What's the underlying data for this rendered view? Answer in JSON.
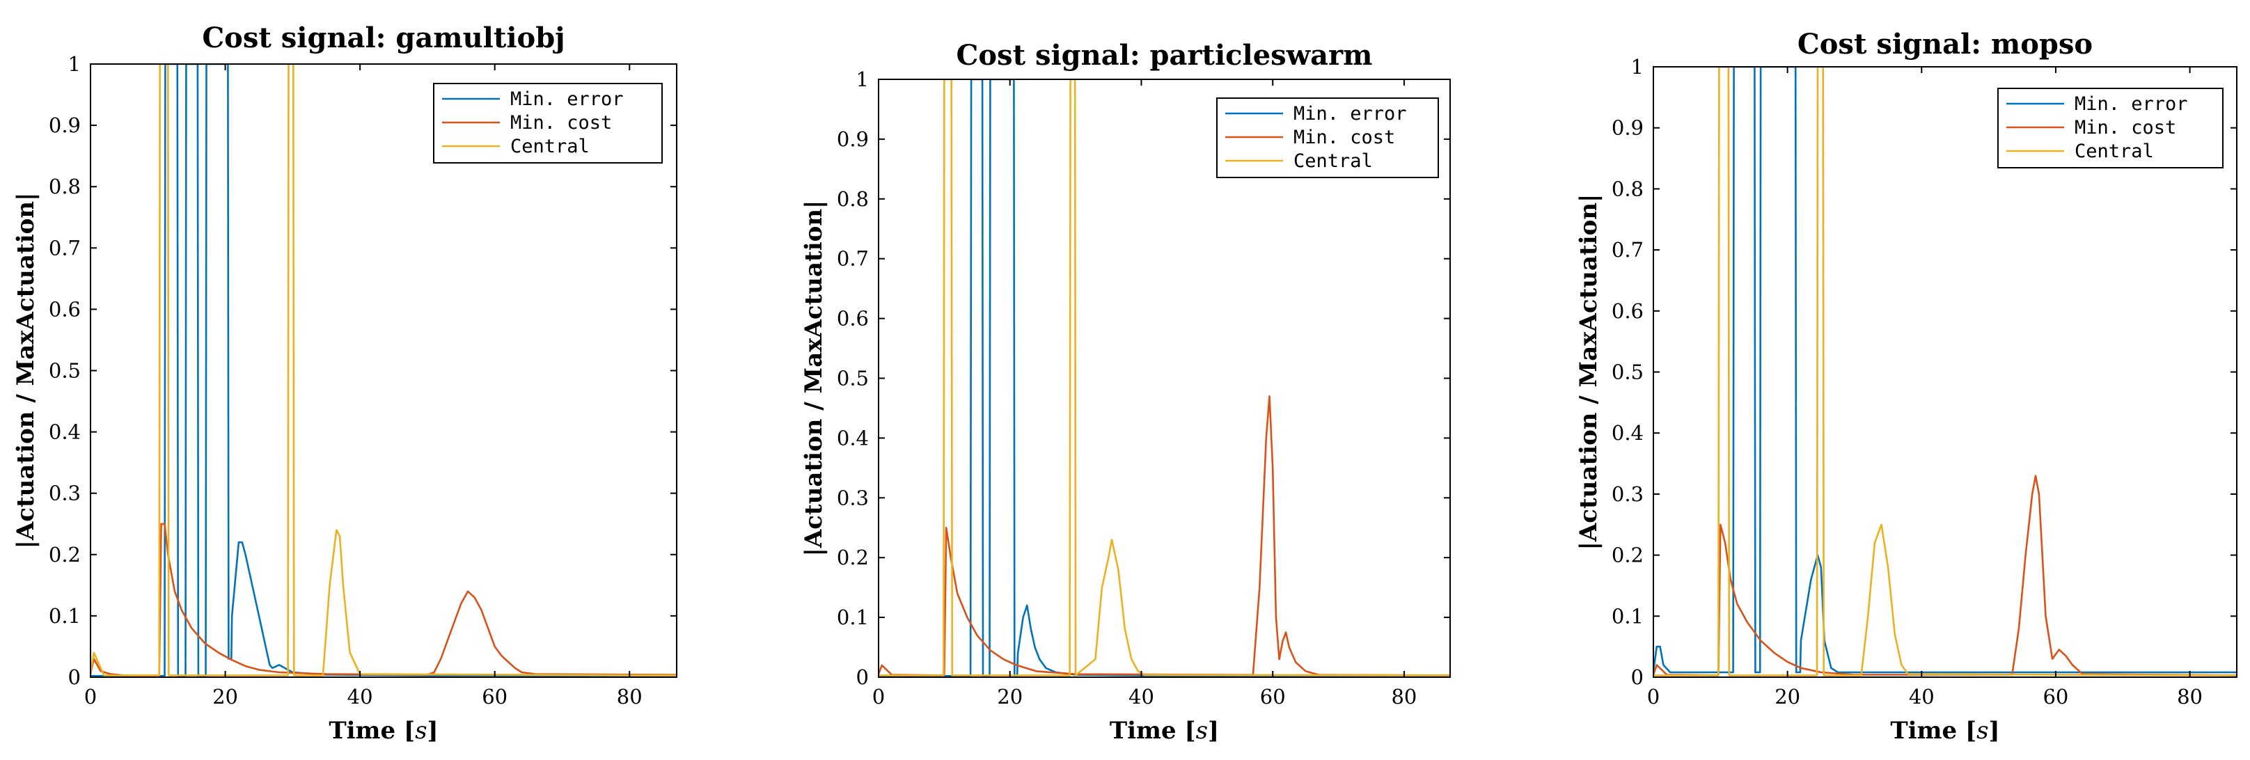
{
  "chart_data": [
    {
      "type": "line",
      "title": "Cost signal: gamultiobj",
      "xlabel": "Time",
      "xunit": "s",
      "ylabel": "|Actuation / MaxActuation|",
      "xlim": [
        0,
        87
      ],
      "ylim": [
        0,
        1
      ],
      "xticks": [
        0,
        20,
        40,
        60,
        80
      ],
      "yticks": [
        0,
        0.1,
        0.2,
        0.3,
        0.4,
        0.5,
        0.6,
        0.7,
        0.8,
        0.9,
        1
      ],
      "legend_position": "top-right",
      "series": [
        {
          "name": "Min. error",
          "color": "#0072BD",
          "x": [
            0,
            10.5,
            11.0,
            11.1,
            12.9,
            13.0,
            14.1,
            14.2,
            15.9,
            16.0,
            17.1,
            17.2,
            20.4,
            20.5,
            20.9,
            21.0,
            22.0,
            22.5,
            23.0,
            24.0,
            25.0,
            26.0,
            26.6,
            27.0,
            28.0,
            30.0,
            35.0,
            50.0,
            87.0
          ],
          "y": [
            0.002,
            0.002,
            0.002,
            1.0,
            1.0,
            0.002,
            0.002,
            1.0,
            1.0,
            0.002,
            0.002,
            1.0,
            1.0,
            0.03,
            0.03,
            0.1,
            0.22,
            0.22,
            0.2,
            0.15,
            0.1,
            0.05,
            0.02,
            0.015,
            0.02,
            0.008,
            0.004,
            0.003,
            0.003
          ]
        },
        {
          "name": "Min. cost",
          "color": "#D95319",
          "x": [
            0,
            0.5,
            1.5,
            3,
            5,
            8,
            10.2,
            10.5,
            11.0,
            11.5,
            12.5,
            13.5,
            15,
            17,
            19,
            21,
            23,
            25,
            28,
            35,
            50,
            51.0,
            52.0,
            53.0,
            54.0,
            55.0,
            56.0,
            57.0,
            58.0,
            59.0,
            60.0,
            61.0,
            62.0,
            63.0,
            64.0,
            66.0,
            87.0
          ],
          "y": [
            0.005,
            0.03,
            0.01,
            0.005,
            0.003,
            0.002,
            0.002,
            0.25,
            0.25,
            0.2,
            0.14,
            0.11,
            0.08,
            0.055,
            0.04,
            0.028,
            0.018,
            0.012,
            0.008,
            0.005,
            0.004,
            0.008,
            0.03,
            0.06,
            0.09,
            0.12,
            0.14,
            0.13,
            0.11,
            0.08,
            0.05,
            0.035,
            0.025,
            0.015,
            0.008,
            0.005,
            0.004
          ]
        },
        {
          "name": "Central",
          "color": "#EDB120",
          "x": [
            0,
            0.5,
            2,
            10.2,
            10.3,
            11.5,
            11.6,
            29.3,
            29.4,
            30.1,
            30.2,
            34.5,
            35.5,
            36.5,
            37.0,
            37.5,
            38.5,
            40.0,
            87.0
          ],
          "y": [
            0.005,
            0.04,
            0.003,
            0.003,
            1.0,
            1.0,
            0.003,
            0.003,
            1.0,
            1.0,
            0.003,
            0.003,
            0.15,
            0.24,
            0.23,
            0.15,
            0.04,
            0.005,
            0.003
          ]
        }
      ]
    },
    {
      "type": "line",
      "title": "Cost signal: particleswarm",
      "xlabel": "Time",
      "xunit": "s",
      "ylabel": "|Actuation / MaxActuation|",
      "xlim": [
        0,
        87
      ],
      "ylim": [
        0,
        1
      ],
      "xticks": [
        0,
        20,
        40,
        60,
        80
      ],
      "yticks": [
        0,
        0.1,
        0.2,
        0.3,
        0.4,
        0.5,
        0.6,
        0.7,
        0.8,
        0.9,
        1
      ],
      "legend_position": "top-right",
      "series": [
        {
          "name": "Min. error",
          "color": "#0072BD",
          "x": [
            0,
            10.5,
            14.0,
            14.1,
            15.8,
            15.9,
            16.9,
            17.0,
            20.6,
            20.7,
            21.1,
            21.2,
            22.0,
            22.6,
            23.2,
            23.8,
            24.5,
            25.5,
            27.0,
            30.0,
            40.0,
            87.0
          ],
          "y": [
            0.002,
            0.002,
            0.002,
            1.0,
            1.0,
            0.002,
            0.002,
            1.0,
            1.0,
            0.002,
            0.002,
            0.04,
            0.1,
            0.12,
            0.08,
            0.05,
            0.03,
            0.015,
            0.008,
            0.004,
            0.003,
            0.003
          ]
        },
        {
          "name": "Min. cost",
          "color": "#D95319",
          "x": [
            0,
            0.5,
            2,
            10.0,
            10.3,
            11.0,
            12,
            13.5,
            15,
            17,
            19,
            21,
            24,
            30,
            57.0,
            58.0,
            59.0,
            59.5,
            60.0,
            60.5,
            61.0,
            61.5,
            62.0,
            62.5,
            63.5,
            65.0,
            67.0,
            87.0
          ],
          "y": [
            0.005,
            0.02,
            0.004,
            0.003,
            0.25,
            0.2,
            0.14,
            0.1,
            0.07,
            0.045,
            0.03,
            0.02,
            0.01,
            0.005,
            0.004,
            0.15,
            0.4,
            0.47,
            0.35,
            0.1,
            0.03,
            0.06,
            0.075,
            0.05,
            0.025,
            0.01,
            0.004,
            0.003
          ]
        },
        {
          "name": "Central",
          "color": "#EDB120",
          "x": [
            0,
            9.9,
            10.0,
            11.1,
            11.2,
            29.1,
            29.2,
            29.9,
            30.0,
            33.0,
            34.0,
            35.0,
            35.5,
            36.5,
            37.5,
            38.5,
            39.5,
            40.5,
            87.0
          ],
          "y": [
            0.003,
            0.003,
            1.0,
            1.0,
            0.003,
            0.003,
            1.0,
            1.0,
            0.003,
            0.03,
            0.15,
            0.2,
            0.23,
            0.18,
            0.08,
            0.03,
            0.01,
            0.004,
            0.003
          ]
        }
      ]
    },
    {
      "type": "line",
      "title": "Cost signal: mopso",
      "xlabel": "Time",
      "xunit": "s",
      "ylabel": "|Actuation / MaxActuation|",
      "xlim": [
        0,
        87
      ],
      "ylim": [
        0,
        1
      ],
      "xticks": [
        0,
        20,
        40,
        60,
        80
      ],
      "yticks": [
        0,
        0.1,
        0.2,
        0.3,
        0.4,
        0.5,
        0.6,
        0.7,
        0.8,
        0.9,
        1
      ],
      "legend_position": "top-right",
      "series": [
        {
          "name": "Min. error",
          "color": "#0072BD",
          "x": [
            0,
            0.5,
            1.0,
            1.5,
            2.5,
            10.0,
            11.9,
            12.0,
            15.1,
            15.2,
            15.9,
            16.0,
            21.2,
            21.3,
            21.9,
            22.0,
            23.5,
            24.5,
            25.0,
            25.5,
            26.5,
            27.5,
            87.0
          ],
          "y": [
            0.01,
            0.05,
            0.05,
            0.02,
            0.008,
            0.008,
            0.008,
            1.0,
            1.0,
            0.008,
            0.008,
            1.0,
            1.0,
            0.008,
            0.008,
            0.06,
            0.16,
            0.2,
            0.18,
            0.06,
            0.015,
            0.008,
            0.008
          ]
        },
        {
          "name": "Min. cost",
          "color": "#D95319",
          "x": [
            0,
            0.5,
            2,
            9.7,
            10.0,
            10.7,
            11.5,
            12.5,
            14,
            16,
            18,
            20,
            22,
            25,
            30,
            53.5,
            54.5,
            55.5,
            56.0,
            56.5,
            57.0,
            57.5,
            58.0,
            58.5,
            59.5,
            60.5,
            61.5,
            62.5,
            64.0,
            87.0
          ],
          "y": [
            0.004,
            0.02,
            0.004,
            0.003,
            0.25,
            0.22,
            0.16,
            0.12,
            0.09,
            0.06,
            0.04,
            0.025,
            0.015,
            0.008,
            0.004,
            0.004,
            0.08,
            0.2,
            0.25,
            0.3,
            0.33,
            0.3,
            0.2,
            0.1,
            0.03,
            0.045,
            0.035,
            0.02,
            0.005,
            0.003
          ]
        },
        {
          "name": "Central",
          "color": "#EDB120",
          "x": [
            0,
            9.7,
            9.8,
            11.2,
            11.3,
            24.4,
            24.5,
            25.3,
            25.4,
            31.0,
            32.0,
            33.0,
            34.0,
            35.0,
            36.0,
            37.0,
            38.0,
            87.0
          ],
          "y": [
            0.003,
            0.003,
            1.0,
            1.0,
            0.003,
            0.003,
            1.0,
            1.0,
            0.003,
            0.003,
            0.1,
            0.22,
            0.25,
            0.18,
            0.07,
            0.02,
            0.005,
            0.003
          ]
        }
      ]
    }
  ]
}
